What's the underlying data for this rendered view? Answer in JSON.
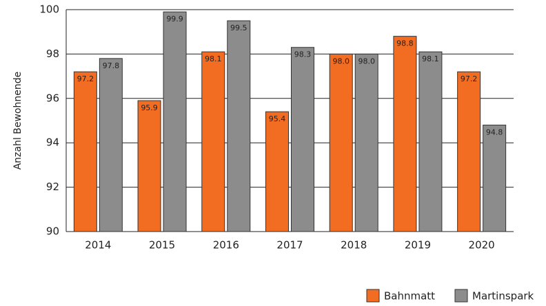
{
  "chart_data": {
    "type": "bar",
    "y_label": "Anzahl Bewohnende",
    "categories": [
      "2014",
      "2015",
      "2016",
      "2017",
      "2018",
      "2019",
      "2020"
    ],
    "series": [
      {
        "name": "Bahnmatt",
        "color": "#f26c21",
        "values": [
          97.2,
          95.9,
          98.1,
          95.4,
          98.0,
          98.8,
          97.2
        ],
        "value_labels": [
          "97.2",
          "95.9",
          "98.1",
          "95.4",
          "98.0",
          "98.8",
          "97.2"
        ]
      },
      {
        "name": "Martinspark",
        "color": "#8c8c8c",
        "values": [
          97.8,
          99.9,
          99.5,
          98.3,
          98.0,
          98.1,
          94.8
        ],
        "value_labels": [
          "97.8",
          "99.9",
          "99.5",
          "98.3",
          "98.0",
          "98.1",
          "94.8"
        ]
      }
    ],
    "ylim": [
      90,
      100
    ],
    "yticks": [
      90,
      92,
      94,
      96,
      98,
      100
    ],
    "grid": true,
    "legend": "bottom-right"
  }
}
